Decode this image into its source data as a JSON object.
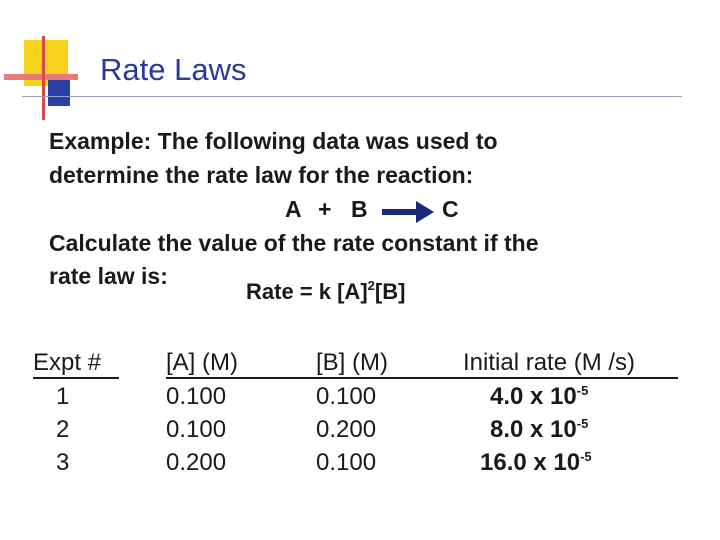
{
  "slide": {
    "title": "Rate Laws",
    "intro_line_1": "Example:  The following data was used to",
    "intro_line_2": "determine the rate law for the reaction:",
    "reaction": {
      "reactant_a": "A",
      "plus": "+",
      "reactant_b": "B",
      "product": "C"
    },
    "question_line_1": "Calculate the value of the rate constant if the",
    "question_line_2": "rate law is:",
    "rate_law": {
      "prefix": "Rate = k [A]",
      "exponent": "2",
      "suffix": "[B]"
    }
  },
  "table": {
    "headers": [
      "Expt #",
      "[A] (M)",
      "[B] (M)",
      "Initial rate (M /s)"
    ],
    "rows": [
      {
        "expt": "1",
        "a": "0.100",
        "b": "0.100",
        "rate_base": "4.0 x 10",
        "rate_exp": "-5"
      },
      {
        "expt": "2",
        "a": "0.100",
        "b": "0.200",
        "rate_base": "8.0 x 10",
        "rate_exp": "-5"
      },
      {
        "expt": "3",
        "a": "0.200",
        "b": "0.100",
        "rate_base": "16.0 x 10",
        "rate_exp": "-5"
      }
    ]
  },
  "colors": {
    "title": "#2a3a9a",
    "deco_yellow": "#f6d21a",
    "deco_red": "#e23c3c",
    "deco_blue": "#2b3fa8",
    "arrow": "#1a2a7a"
  }
}
